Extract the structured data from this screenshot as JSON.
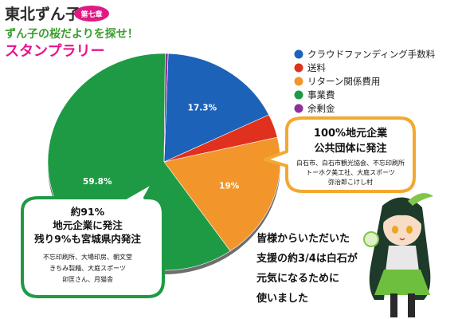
{
  "header": {
    "logo_text": "東北ずん子",
    "badge": "第七章",
    "subtitle": "ずん子の桜だよりを探せ！",
    "title": "スタンプラリー"
  },
  "chart_data": {
    "type": "pie",
    "title": "",
    "slices": [
      {
        "label": "クラウドファンディング手数料",
        "value": 17.3,
        "value_label": "17.3%",
        "color": "#1c62b8"
      },
      {
        "label": "送料",
        "value": 3.5,
        "value_label": "",
        "color": "#e0301e"
      },
      {
        "label": "リターン関係費用",
        "value": 19,
        "value_label": "19%",
        "color": "#f2962b"
      },
      {
        "label": "事業費",
        "value": 59.8,
        "value_label": "59.8%",
        "color": "#1e9a45"
      },
      {
        "label": "余剰金",
        "value": 0.4,
        "value_label": "",
        "color": "#8e2f9a"
      }
    ],
    "legend_position": "right"
  },
  "callouts": {
    "right": {
      "lines": [
        "100%地元企業",
        "公共団体に発注"
      ],
      "sub": [
        "白石市、白石市観光協会、不忘印刷所",
        "トーホク美工社、大庭スポーツ",
        "弥治郎こけし村"
      ]
    },
    "left": {
      "lines": [
        "約91%",
        "地元企業に発注",
        "残り9%も宮城県内発注"
      ],
      "sub": [
        "不忘印刷所、大場印房、朝文堂",
        "きちみ製麺、大庭スポーツ",
        "卯匡さん、月猫舎"
      ]
    }
  },
  "message": [
    "皆様からいただいた",
    "支援の約3/4は白石が",
    "元気になるために",
    "使いました"
  ]
}
